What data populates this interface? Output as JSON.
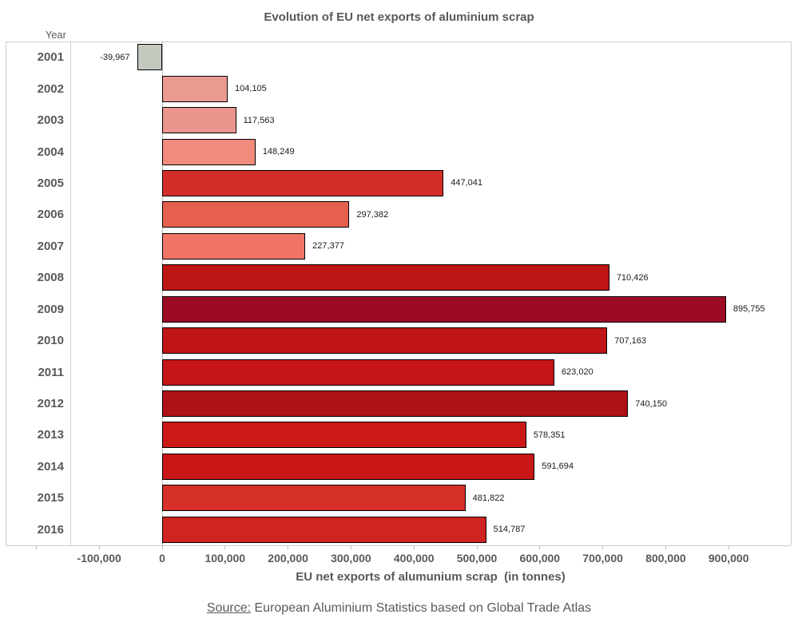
{
  "chart_data": {
    "type": "bar",
    "orientation": "horizontal",
    "title": "Evolution of EU net exports of aluminium scrap",
    "ylabel": "Year",
    "xlabel": "EU net exports of alumunium scrap  (in tonnes)",
    "categories": [
      "2001",
      "2002",
      "2003",
      "2004",
      "2005",
      "2006",
      "2007",
      "2008",
      "2009",
      "2010",
      "2011",
      "2012",
      "2013",
      "2014",
      "2015",
      "2016"
    ],
    "values": [
      -39967,
      104105,
      117563,
      148249,
      447041,
      297382,
      227377,
      710426,
      895755,
      707163,
      623020,
      740150,
      578351,
      591694,
      481822,
      514787
    ],
    "value_labels": [
      "-39,967",
      "104,105",
      "117,563",
      "148,249",
      "447,041",
      "297,382",
      "227,377",
      "710,426",
      "895,755",
      "707,163",
      "623,020",
      "740,150",
      "578,351",
      "591,694",
      "481,822",
      "514,787"
    ],
    "bar_colors": [
      "#c3c9be",
      "#eb9a92",
      "#ea958d",
      "#f18b7e",
      "#d32e2a",
      "#e5604f",
      "#ef7465",
      "#bd1414",
      "#9c0b26",
      "#bf1516",
      "#c41417",
      "#b01117",
      "#cb1918",
      "#c91617",
      "#d63029",
      "#d02420"
    ],
    "bar_border_color": "#000000",
    "xlim": [
      -150000,
      1000000
    ],
    "xticks": [
      -100000,
      0,
      100000,
      200000,
      300000,
      400000,
      500000,
      600000,
      700000,
      800000,
      900000
    ],
    "xtick_labels": [
      "-100,000",
      "0",
      "100,000",
      "200,000",
      "300,000",
      "400,000",
      "500,000",
      "600,000",
      "700,000",
      "800,000",
      "900,000"
    ],
    "xticks_minor": [
      -200000
    ],
    "grid": "zero-line-dotted",
    "legend": "none"
  },
  "source": {
    "label": "Source:",
    "text": " European Aluminium Statistics based on Global Trade Atlas"
  },
  "colors": {
    "text": "#595959",
    "value_text": "#1a1a1a",
    "frame": "#cfcfcf",
    "zero_line": "#7a7a7a",
    "background": "#ffffff"
  }
}
